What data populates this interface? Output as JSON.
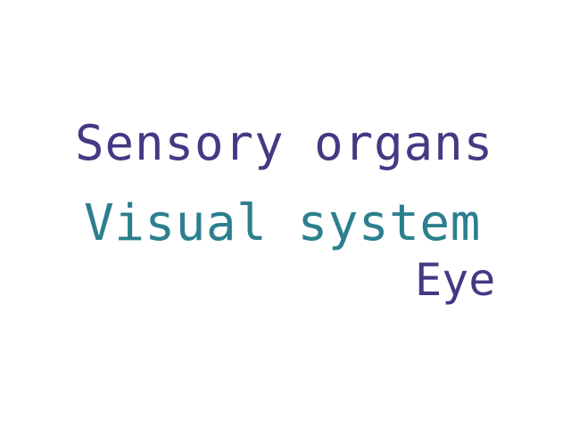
{
  "words": [
    {
      "text": "Sensory organs",
      "color": "#443983"
    },
    {
      "text": "Visual system",
      "color": "#2c7f8e"
    },
    {
      "text": "Eye",
      "color": "#443983"
    }
  ]
}
